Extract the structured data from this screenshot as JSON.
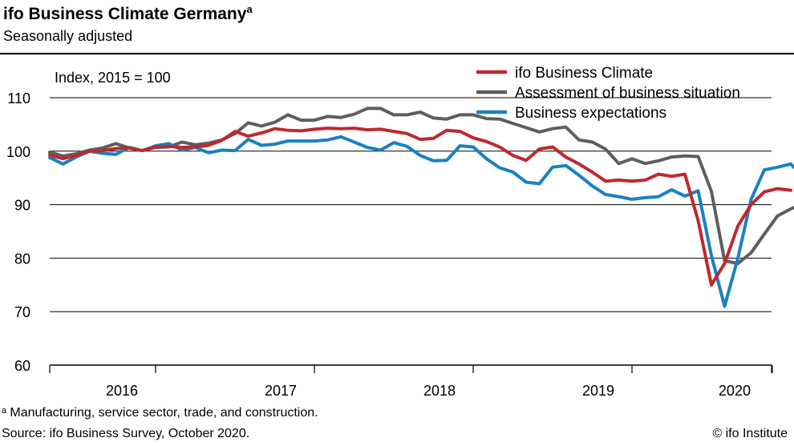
{
  "header": {
    "title": "ifo Business Climate Germany",
    "title_sup": "a",
    "subtitle": "Seasonally adjusted"
  },
  "footer": {
    "footnote": "ᵃ Manufacturing, service sector, trade, and construction.",
    "source": "Source: ifo Business Survey, October 2020.",
    "copyright": "© ifo Institute"
  },
  "chart_data": {
    "type": "line",
    "index_label": "Index, 2015 = 100",
    "ylim": [
      60,
      110
    ],
    "yticks": [
      60,
      70,
      80,
      90,
      100,
      110
    ],
    "xlim": [
      0,
      58
    ],
    "x_ticks": [
      "2016",
      "2017",
      "2018",
      "2019",
      "2020"
    ],
    "grid": true,
    "legend_position": "top-right",
    "series": [
      {
        "name": "ifo Business Climate",
        "color": "#c0282d",
        "values": [
          99.3,
          98.6,
          99.2,
          100.0,
          100.1,
          100.5,
          100.6,
          100.1,
          100.8,
          100.9,
          100.7,
          100.8,
          101.1,
          102.0,
          103.7,
          102.8,
          103.4,
          104.2,
          103.9,
          103.8,
          104.1,
          104.3,
          104.2,
          104.3,
          104.0,
          104.1,
          103.7,
          103.3,
          102.2,
          102.4,
          103.9,
          103.7,
          102.5,
          101.8,
          100.8,
          99.2,
          98.3,
          100.4,
          100.8,
          98.9,
          97.6,
          96.1,
          94.4,
          94.6,
          94.4,
          94.6,
          95.7,
          95.3,
          95.7,
          87.0,
          75.0,
          79.0,
          86.0,
          90.0,
          92.4,
          93.0,
          92.7
        ],
        "x_start": 0
      },
      {
        "name": "Assessment of business situation",
        "color": "#5e5e5e",
        "values": [
          99.8,
          99.1,
          99.5,
          100.2,
          100.6,
          101.4,
          100.6,
          100.1,
          100.7,
          100.8,
          101.7,
          101.2,
          101.5,
          102.1,
          103.3,
          105.3,
          104.7,
          105.4,
          106.8,
          105.8,
          105.8,
          106.5,
          106.3,
          106.9,
          108.0,
          108.0,
          106.8,
          106.8,
          107.3,
          106.2,
          106.0,
          106.8,
          106.8,
          106.1,
          106.0,
          105.2,
          104.4,
          103.6,
          104.2,
          104.5,
          102.1,
          101.7,
          100.4,
          97.7,
          98.6,
          97.7,
          98.2,
          98.9,
          99.1,
          99.0,
          92.5,
          79.5,
          79.0,
          81.0,
          84.5,
          87.9,
          89.2,
          90.3
        ],
        "x_start": 0
      },
      {
        "name": "Business expectations",
        "color": "#1a80c4",
        "values": [
          98.8,
          97.6,
          98.9,
          100.0,
          99.6,
          99.4,
          100.7,
          100.1,
          101.0,
          101.4,
          100.2,
          100.7,
          99.7,
          100.2,
          100.1,
          102.2,
          101.1,
          101.3,
          101.9,
          101.9,
          101.9,
          102.1,
          102.7,
          101.7,
          100.7,
          100.2,
          101.6,
          100.9,
          99.2,
          98.2,
          98.3,
          101.0,
          100.8,
          98.6,
          96.9,
          96.1,
          94.2,
          93.9,
          97.0,
          97.3,
          95.5,
          93.5,
          91.9,
          91.5,
          91.0,
          91.3,
          91.5,
          92.8,
          91.6,
          92.6,
          80.5,
          71.0,
          80.0,
          91.0,
          96.5,
          97.0,
          97.6,
          95.0
        ],
        "x_start": 0
      }
    ]
  }
}
